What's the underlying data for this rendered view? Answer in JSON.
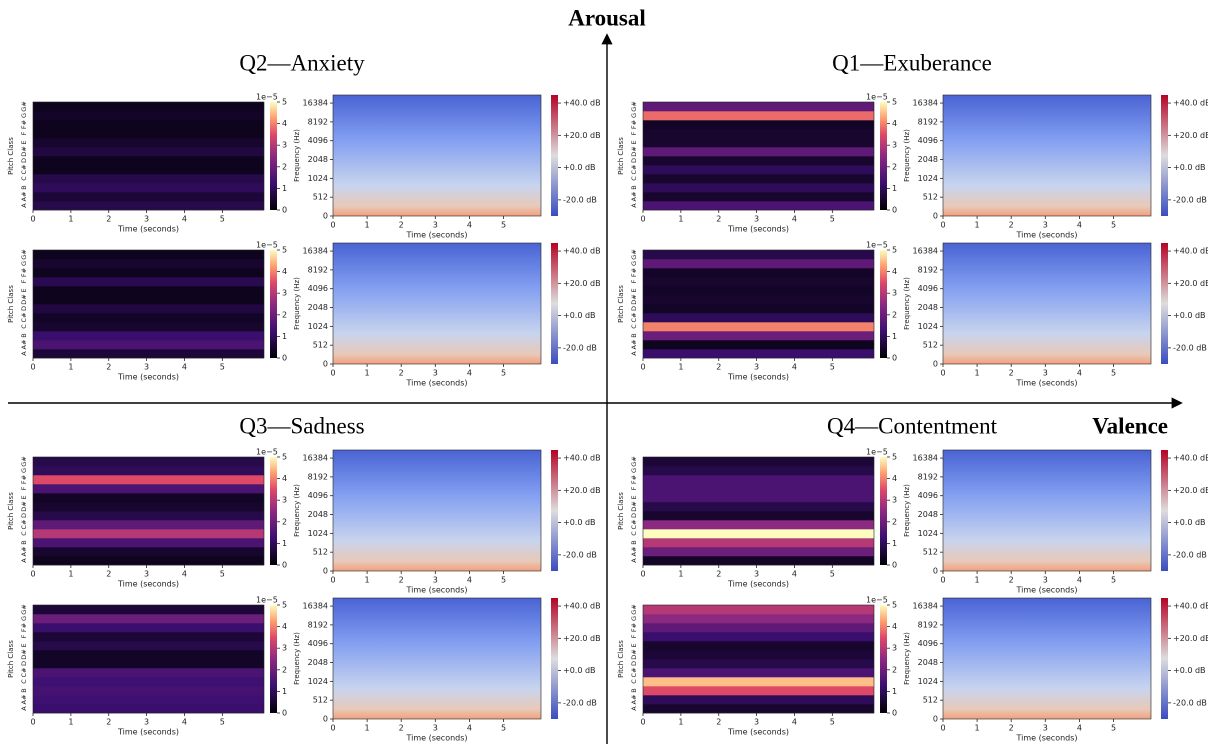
{
  "axes": {
    "vertical_label": "Arousal",
    "horizontal_label": "Valence"
  },
  "common": {
    "time_label": "Time (seconds)",
    "pitch_label": "Pitch Class",
    "freq_label": "Frequency (Hz)",
    "time_lim": [
      0,
      6.1
    ],
    "time_ticks": [
      0,
      1,
      2,
      3,
      4,
      5
    ],
    "pitch_classes": [
      "A",
      "A#",
      "B",
      "C",
      "C#",
      "D",
      "D#",
      "E",
      "F",
      "F#",
      "G",
      "G#"
    ],
    "chroma_scale": "1e−5",
    "chroma_lim": [
      0,
      5
    ],
    "chroma_ticks": [
      0,
      1,
      2,
      3,
      4,
      5
    ],
    "freq_lim": [
      0,
      22050
    ],
    "freq_ticks": [
      0,
      512,
      1024,
      2048,
      4096,
      8192,
      16384
    ],
    "db_lim": [
      -30,
      45
    ],
    "db_ticks": [
      {
        "value": 40,
        "label": "+40.0 dB"
      },
      {
        "value": 20,
        "label": "+20.0 dB"
      },
      {
        "value": 0,
        "label": "+0.0 dB"
      },
      {
        "value": -20,
        "label": "-20.0 dB"
      }
    ]
  },
  "quadrants": [
    {
      "title": "Q2—Anxiety",
      "panels": [
        {
          "chroma": [
            0.8,
            0.6,
            1.0,
            0.8,
            0.3,
            0.3,
            0.7,
            0.5,
            0.3,
            0.3,
            0.4,
            0.3
          ]
        },
        {
          "chroma": [
            0.6,
            1.5,
            1.2,
            0.5,
            0.4,
            0.7,
            0.3,
            0.3,
            0.9,
            0.3,
            0.5,
            0.3
          ]
        }
      ]
    },
    {
      "title": "Q1—Exuberance",
      "panels": [
        {
          "chroma": [
            1.5,
            0.5,
            1.0,
            0.5,
            1.0,
            0.5,
            1.8,
            0.5,
            0.5,
            0.4,
            3.8,
            1.8
          ]
        },
        {
          "chroma": [
            1.2,
            0.3,
            2.0,
            4.0,
            1.0,
            0.4,
            0.5,
            0.4,
            0.5,
            0.4,
            1.8,
            0.8
          ]
        }
      ]
    },
    {
      "title": "Q3—Sadness",
      "panels": [
        {
          "chroma": [
            0.3,
            0.5,
            1.5,
            3.0,
            1.8,
            0.8,
            0.5,
            0.4,
            1.5,
            3.5,
            1.0,
            0.8
          ]
        },
        {
          "chroma": [
            1.2,
            1.3,
            1.4,
            1.3,
            1.5,
            0.4,
            0.4,
            0.8,
            0.6,
            1.2,
            2.0,
            0.6
          ]
        }
      ]
    },
    {
      "title": "Q4—Contentment",
      "panels": [
        {
          "chroma": [
            0.4,
            2.0,
            3.0,
            5.0,
            2.5,
            0.5,
            0.8,
            1.5,
            1.5,
            1.5,
            0.8,
            0.6
          ]
        },
        {
          "chroma": [
            0.5,
            1.0,
            3.5,
            4.5,
            1.5,
            0.8,
            0.6,
            0.5,
            1.2,
            1.8,
            2.5,
            3.0
          ]
        }
      ]
    }
  ]
}
